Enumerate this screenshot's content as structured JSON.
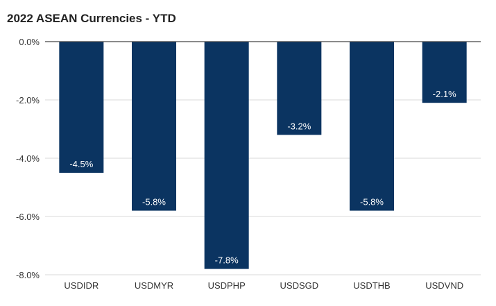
{
  "chart_data": {
    "type": "bar",
    "title": "2022 ASEAN Currencies - YTD",
    "xlabel": "",
    "ylabel": "",
    "categories": [
      "USDIDR",
      "USDMYR",
      "USDPHP",
      "USDSGD",
      "USDTHB",
      "USDVND"
    ],
    "values": [
      -4.5,
      -5.8,
      -7.8,
      -3.2,
      -5.8,
      -2.1
    ],
    "data_labels": [
      "-4.5%",
      "-5.8%",
      "-7.8%",
      "-3.2%",
      "-5.8%",
      "-2.1%"
    ],
    "ylim": [
      -8.0,
      0.0
    ],
    "yticks": [
      0.0,
      -2.0,
      -4.0,
      -6.0,
      -8.0
    ],
    "ytick_labels": [
      "0.0%",
      "-2.0%",
      "-4.0%",
      "-6.0%",
      "-8.0%"
    ],
    "grid": true,
    "legend": "none",
    "colors": {
      "bar": "#0b3461",
      "gridline": "#d9d9d9",
      "zero_line": "#444444"
    }
  }
}
